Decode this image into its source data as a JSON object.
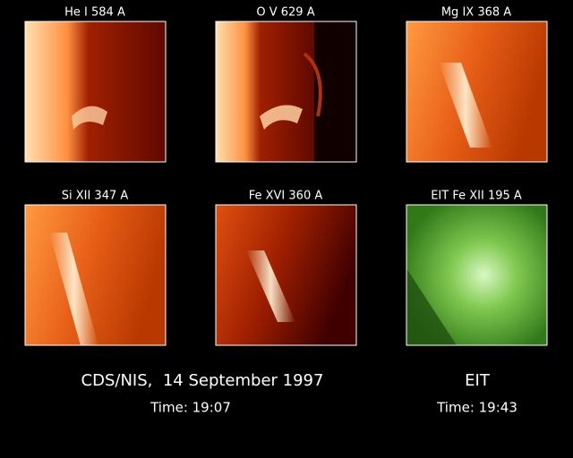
{
  "panels": [
    {
      "label": "He I 584 A"
    },
    {
      "label": "O V 629 A"
    },
    {
      "label": "Mg IX 368 A"
    },
    {
      "label": "Si XII 347 A"
    },
    {
      "label": "Fe XVI 360 A"
    },
    {
      "label": "EIT Fe XII 195 A"
    }
  ],
  "footer": {
    "cds_title": "CDS/NIS,  14 September 1997",
    "cds_time": "Time: 19:07",
    "eit_title": "EIT",
    "eit_time": "Time: 19:43"
  }
}
